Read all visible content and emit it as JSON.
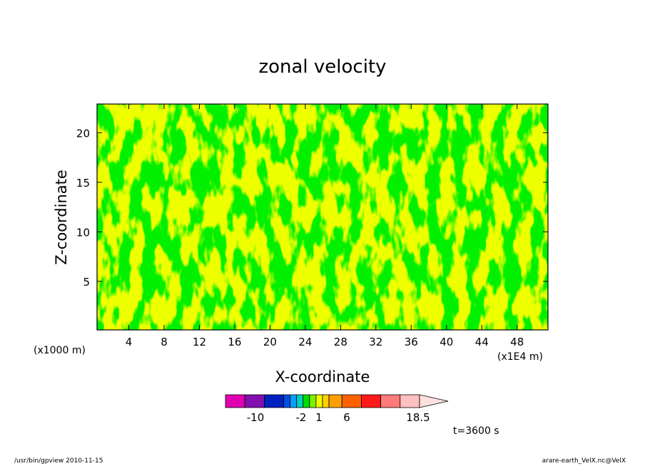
{
  "chart_data": {
    "type": "heatmap",
    "title": "zonal velocity",
    "xlabel": "X-coordinate",
    "ylabel": "Z-coordinate",
    "x_unit_label": "(x1E4 m)",
    "y_unit_label": "(x1000 m)",
    "xlim": [
      0.4,
      51.5
    ],
    "ylim": [
      0.1,
      22.9
    ],
    "x_ticks": [
      "4",
      "8",
      "12",
      "16",
      "20",
      "24",
      "28",
      "32",
      "36",
      "40",
      "44",
      "48"
    ],
    "x_tick_values": [
      4,
      8,
      12,
      16,
      20,
      24,
      28,
      32,
      36,
      40,
      44,
      48
    ],
    "y_ticks": [
      "5",
      "10",
      "15",
      "20"
    ],
    "y_tick_values": [
      5,
      10,
      15,
      20
    ],
    "field_levels_shown": [
      {
        "range": "-2 to 1",
        "color": "#00dd00"
      },
      {
        "range": "1 to 6",
        "color": "#eeff00"
      }
    ],
    "colorbar": {
      "colors": [
        "#e000b0",
        "#8010b0",
        "#0020c0",
        "#0050e0",
        "#00a0ff",
        "#00d0c0",
        "#00dd00",
        "#80ee00",
        "#eeff00",
        "#ffd000",
        "#ffa000",
        "#ff6000",
        "#ff1a1a",
        "#ff7a7a",
        "#ffc0c0",
        "#ffe0e0"
      ],
      "labels": [
        "-10",
        "-2",
        "1",
        "6",
        "18.5"
      ]
    },
    "time_label": "t=3600 s"
  },
  "footer": {
    "left": "/usr/bin/gpview   2010-11-15",
    "right": "arare-earth_VelX.nc@VelX"
  },
  "colors": {
    "green": "#00dd00",
    "yellow": "#eeff00",
    "contour": "#1a1a1a"
  }
}
